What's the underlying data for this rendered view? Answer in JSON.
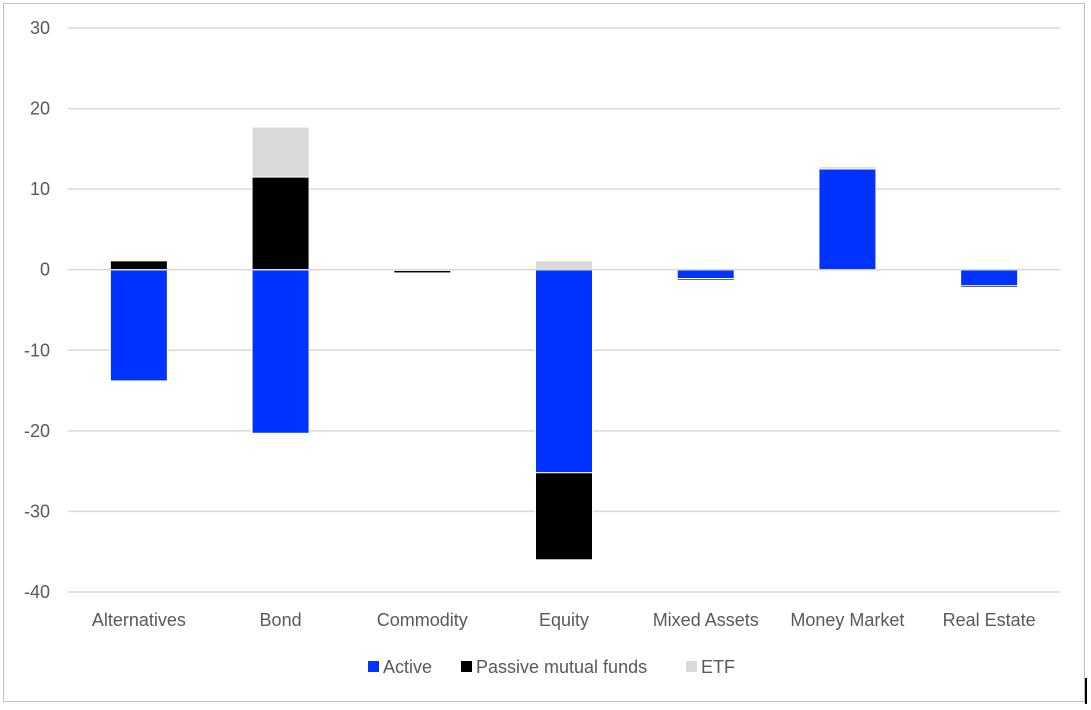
{
  "chart_data": {
    "type": "bar",
    "stacked": true,
    "categories": [
      "Alternatives",
      "Bond",
      "Commodity",
      "Equity",
      "Mixed Assets",
      "Money Market",
      "Real Estate"
    ],
    "series": [
      {
        "name": "Active",
        "color": "#0033ff",
        "values": [
          -13.8,
          -20.3,
          -0.1,
          -25.2,
          -1.1,
          12.5,
          -2.0
        ]
      },
      {
        "name": "Passive mutual funds",
        "color": "#000000",
        "values": [
          1.1,
          11.5,
          -0.3,
          -10.8,
          -0.2,
          0.0,
          -0.2
        ]
      },
      {
        "name": "ETF",
        "color": "#d9d9d9",
        "values": [
          0.0,
          6.2,
          0.0,
          1.1,
          0.0,
          0.3,
          0.0
        ]
      }
    ],
    "ylim": [
      -40,
      30
    ],
    "yticks": [
      "30",
      "20",
      "10",
      "0",
      "-10",
      "-20",
      "-30",
      "-40"
    ],
    "ytick_values": [
      30,
      20,
      10,
      0,
      -10,
      -20,
      -30,
      -40
    ],
    "grid": true,
    "legend_position": "bottom",
    "title": "",
    "xlabel": "",
    "ylabel": ""
  }
}
